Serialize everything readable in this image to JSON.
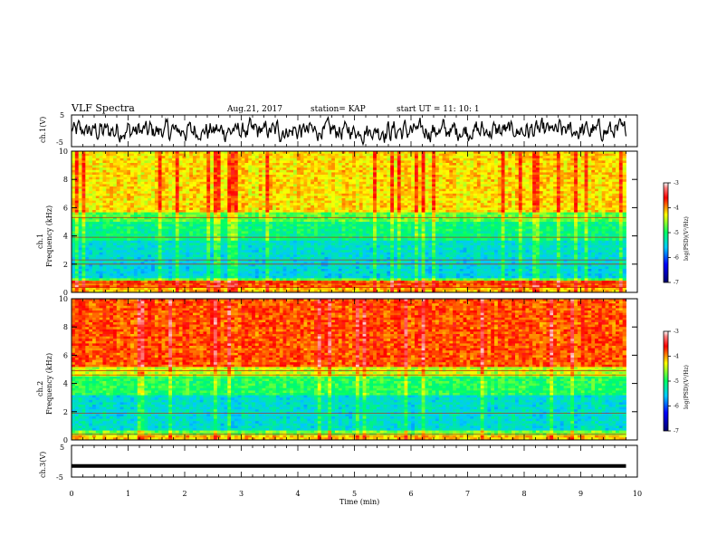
{
  "header": {
    "title": "VLF Spectra",
    "date": "Aug.21, 2017",
    "station": "station= KAP",
    "start": "start  UT =   11: 10: 1"
  },
  "chart_data": [
    {
      "type": "line",
      "name": "ch1-waveform",
      "ylabel": "ch.1(V)",
      "ylim": [
        -5,
        5
      ],
      "xlim": [
        0,
        10
      ],
      "yticks": [
        "5",
        "-5"
      ]
    },
    {
      "type": "heatmap",
      "name": "ch1-spectrogram",
      "ylabel": "ch.1\nFrequency (kHz)",
      "ylabel_line1": "ch.1",
      "ylabel_line2": "Frequency  (kHz)",
      "ylim": [
        0,
        10
      ],
      "yticks": [
        "0",
        "2",
        "4",
        "6",
        "8",
        "10"
      ],
      "data_extent_min": 9.8,
      "colorbar": {
        "label": "log(PSD)(V²/Hz)",
        "range": [
          -7,
          -3
        ],
        "ticks": [
          "-3",
          "-4",
          "-5",
          "-6",
          "-7"
        ]
      }
    },
    {
      "type": "heatmap",
      "name": "ch2-spectrogram",
      "ylabel_line1": "ch.2",
      "ylabel_line2": "Frequency  (kHz)",
      "ylim": [
        0,
        10
      ],
      "yticks": [
        "0",
        "2",
        "4",
        "6",
        "8",
        "10"
      ],
      "data_extent_min": 9.8,
      "colorbar": {
        "label": "log(PSD)(V²/Hz)",
        "range": [
          -7,
          -3
        ],
        "ticks": [
          "-3",
          "-4",
          "-5",
          "-6",
          "-7"
        ]
      }
    },
    {
      "type": "line",
      "name": "ch3-waveform",
      "ylabel": "ch.3(V)",
      "ylim": [
        -5,
        5
      ],
      "yticks": [
        "5",
        "-5"
      ],
      "constant_value": -1.5,
      "xlabel": "Time  (min)",
      "xlim": [
        0,
        10
      ],
      "xticks": [
        "0",
        "1",
        "2",
        "3",
        "4",
        "5",
        "6",
        "7",
        "8",
        "9",
        "10"
      ]
    }
  ],
  "colors": {
    "background": "#ffffff",
    "axes": "#000000",
    "colormap": [
      "#0000ff",
      "#00c8ff",
      "#00ff64",
      "#ffff00",
      "#ff0000"
    ]
  }
}
